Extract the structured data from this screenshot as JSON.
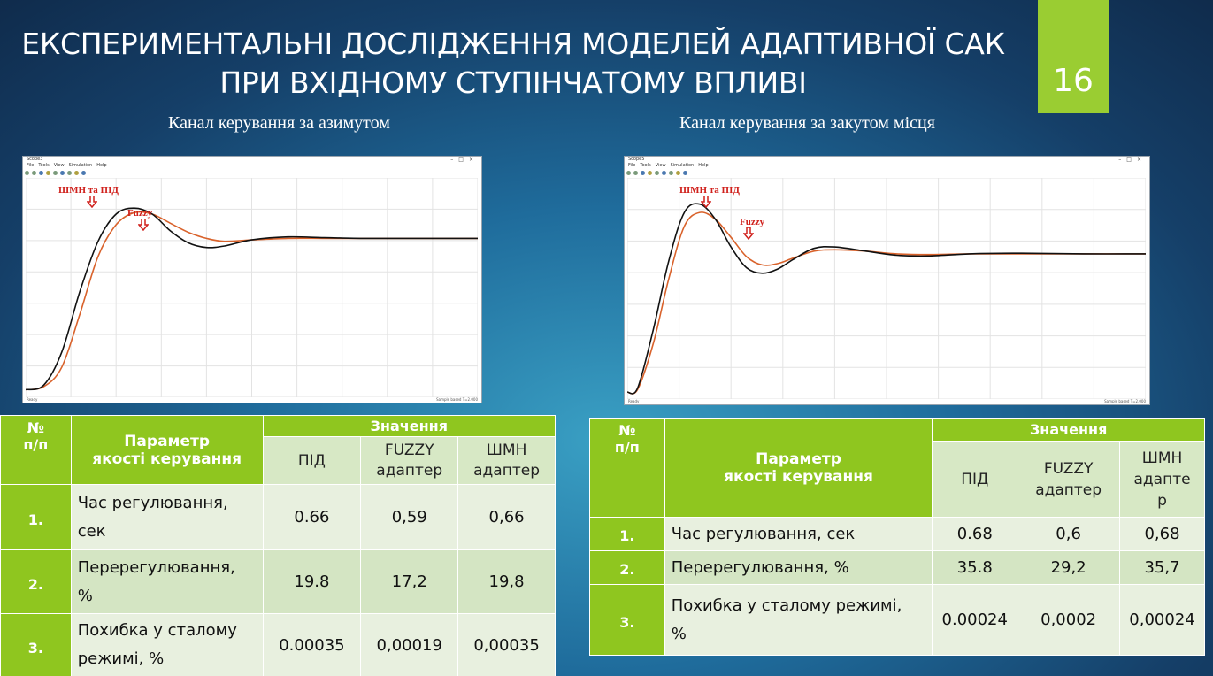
{
  "slide": {
    "title_line1": "ЕКСПЕРИМЕНТАЛЬНІ ДОСЛІДЖЕННЯ МОДЕЛЕЙ АДАПТИВНОЇ САК",
    "title_line2": "ПРИ ВХІДНОМУ СТУПІНЧАТОМУ ВПЛИВІ",
    "page_number": "16",
    "background_color": "#1f6c9c",
    "accent_color": "#9acd32"
  },
  "captions": {
    "left": "Канал керування за азимутом",
    "right": "Канал керування за закутом місця"
  },
  "scope_window": {
    "left_title": "Scope3",
    "right_title": "Scope5",
    "menu": [
      "File",
      "Tools",
      "View",
      "Simulation",
      "Help"
    ],
    "status_left": "Ready",
    "status_right_left": "Sample based  T=2.000",
    "status_right_right": "Sample based  T=2.000"
  },
  "chart_data": [
    {
      "type": "line",
      "grid": true,
      "series_colors": [
        "#111111",
        "#d9622b"
      ],
      "annotations": [
        {
          "text": "ШМН та ПІД",
          "color": "#d0211c",
          "icon": "arrow-down-icon"
        },
        {
          "text": "Fuzzy",
          "color": "#d0211c",
          "icon": "arrow-down-icon"
        }
      ],
      "series": [
        {
          "x": [
            0,
            0.04,
            0.08,
            0.12,
            0.16,
            0.2,
            0.24,
            0.28,
            0.32,
            0.36,
            0.4,
            0.44,
            0.5,
            0.58,
            0.66,
            0.74,
            0.82,
            0.9,
            1.0
          ],
          "y": [
            0,
            0.03,
            0.25,
            0.65,
            0.98,
            1.16,
            1.2,
            1.16,
            1.05,
            0.97,
            0.94,
            0.95,
            0.99,
            1.01,
            1.005,
            1.0,
            1.0,
            1.0,
            1.0
          ]
        },
        {
          "x": [
            0,
            0.04,
            0.08,
            0.12,
            0.16,
            0.2,
            0.24,
            0.28,
            0.32,
            0.36,
            0.4,
            0.44,
            0.5,
            0.58,
            0.66,
            0.74,
            0.82,
            0.9,
            1.0
          ],
          "y": [
            0,
            0.02,
            0.15,
            0.5,
            0.88,
            1.09,
            1.17,
            1.16,
            1.1,
            1.04,
            1.0,
            0.98,
            0.99,
            1.0,
            1.0,
            1.0,
            1.0,
            1.0,
            1.0
          ]
        }
      ],
      "ylim": [
        -0.05,
        1.4
      ],
      "xlim": [
        0,
        1
      ]
    },
    {
      "type": "line",
      "grid": true,
      "series_colors": [
        "#111111",
        "#d9622b"
      ],
      "annotations": [
        {
          "text": "ШМН та ПІД",
          "color": "#d0211c",
          "icon": "arrow-down-icon"
        },
        {
          "text": "Fuzzy",
          "color": "#d0211c",
          "icon": "arrow-down-icon"
        }
      ],
      "series": [
        {
          "x": [
            0,
            0.02,
            0.05,
            0.08,
            0.11,
            0.14,
            0.17,
            0.2,
            0.23,
            0.26,
            0.29,
            0.32,
            0.36,
            0.4,
            0.46,
            0.52,
            0.58,
            0.66,
            0.76,
            0.88,
            1.0
          ],
          "y": [
            0,
            0.03,
            0.45,
            0.95,
            1.3,
            1.36,
            1.25,
            1.05,
            0.9,
            0.86,
            0.89,
            0.96,
            1.04,
            1.05,
            1.02,
            0.99,
            0.985,
            1.0,
            1.005,
            1.0,
            1.0
          ]
        },
        {
          "x": [
            0,
            0.02,
            0.05,
            0.08,
            0.11,
            0.14,
            0.17,
            0.2,
            0.23,
            0.26,
            0.29,
            0.32,
            0.36,
            0.4,
            0.46,
            0.52,
            0.58,
            0.66,
            0.76,
            0.88,
            1.0
          ],
          "y": [
            0,
            0.02,
            0.35,
            0.82,
            1.2,
            1.3,
            1.25,
            1.12,
            0.98,
            0.92,
            0.93,
            0.97,
            1.02,
            1.03,
            1.02,
            1.0,
            0.995,
            1.0,
            1.0,
            1.0,
            1.0
          ]
        }
      ],
      "ylim": [
        -0.05,
        1.55
      ],
      "xlim": [
        0,
        1
      ]
    }
  ],
  "table_left": {
    "h_num": "№\nп/п",
    "h_param": "Параметр\nякості керування",
    "h_values": "Значення",
    "h_cols": [
      "ПІД",
      "FUZZY\nадаптер",
      "ШМН\nадаптер"
    ],
    "rows": [
      {
        "num": "1.",
        "param": "Час регулювання,\nсек",
        "v": [
          "0.66",
          "0,59",
          "0,66"
        ]
      },
      {
        "num": "2.",
        "param": "Перерегулювання,\n%",
        "v": [
          "19.8",
          "17,2",
          "19,8"
        ]
      },
      {
        "num": "3.",
        "param": "Похибка у сталому\nрежимі, %",
        "v": [
          "0.00035",
          "0,00019",
          "0,00035"
        ]
      }
    ]
  },
  "table_right": {
    "h_num": "№\nп/п",
    "h_param": "Параметр\nякості керування",
    "h_values": "Значення",
    "h_cols": [
      "ПІД",
      "FUZZY\nадаптер",
      "ШМН\nадапте\nр"
    ],
    "rows": [
      {
        "num": "1.",
        "param": "Час регулювання, сек",
        "v": [
          "0.68",
          "0,6",
          "0,68"
        ]
      },
      {
        "num": "2.",
        "param": "Перерегулювання, %",
        "v": [
          "35.8",
          "29,2",
          "35,7"
        ]
      },
      {
        "num": "3.",
        "param": "Похибка у сталому режимі,\n%",
        "v": [
          "0.00024",
          "0,0002",
          "0,00024"
        ]
      }
    ]
  }
}
